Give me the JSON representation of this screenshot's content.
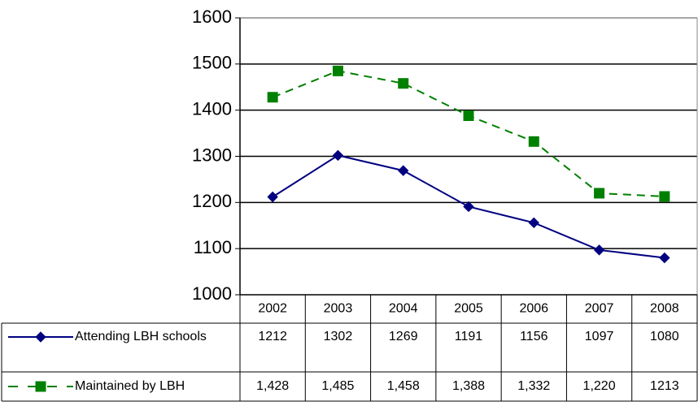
{
  "chart_data": {
    "type": "line",
    "categories": [
      "2002",
      "2003",
      "2004",
      "2005",
      "2006",
      "2007",
      "2008"
    ],
    "series": [
      {
        "name": "Attending LBH schools",
        "color": "#000080",
        "marker": "diamond",
        "dash": false,
        "values": [
          1212,
          1302,
          1269,
          1191,
          1156,
          1097,
          1080
        ]
      },
      {
        "name": "Maintained by LBH",
        "color": "#008000",
        "marker": "square",
        "dash": true,
        "values": [
          1428,
          1485,
          1458,
          1388,
          1332,
          1220,
          1213
        ],
        "value_labels": [
          "1,428",
          "1,485",
          "1,458",
          "1,388",
          "1,332",
          "1,220",
          "1213"
        ]
      }
    ],
    "ylim": [
      1000,
      1600
    ],
    "yticks": [
      1000,
      1100,
      1200,
      1300,
      1400,
      1500,
      1600
    ],
    "grid": true
  }
}
